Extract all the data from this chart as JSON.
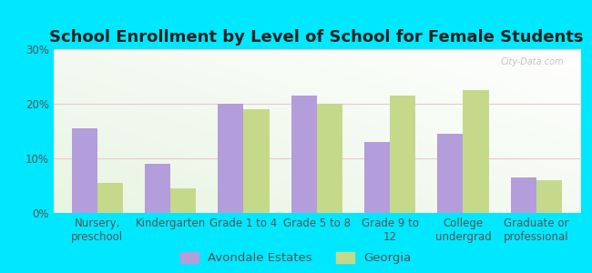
{
  "title": "School Enrollment by Level of School for Female Students",
  "categories": [
    "Nursery,\npreschool",
    "Kindergarten",
    "Grade 1 to 4",
    "Grade 5 to 8",
    "Grade 9 to\n12",
    "College\nundergrad",
    "Graduate or\nprofessional"
  ],
  "avondale": [
    15.5,
    9.0,
    20.0,
    21.5,
    13.0,
    14.5,
    6.5
  ],
  "georgia": [
    5.5,
    4.5,
    19.0,
    20.0,
    21.5,
    22.5,
    6.0
  ],
  "avondale_color": "#b39ddb",
  "georgia_color": "#c5d98a",
  "background_outer": "#00e8ff",
  "background_plot_color": "#e8f5e2",
  "bar_width": 0.35,
  "ylim": [
    0,
    30
  ],
  "yticks": [
    0,
    10,
    20,
    30
  ],
  "yticklabels": [
    "0%",
    "10%",
    "20%",
    "30%"
  ],
  "legend_labels": [
    "Avondale Estates",
    "Georgia"
  ],
  "title_fontsize": 13,
  "axis_fontsize": 8.5,
  "legend_fontsize": 9.5,
  "tick_color": "#555555"
}
